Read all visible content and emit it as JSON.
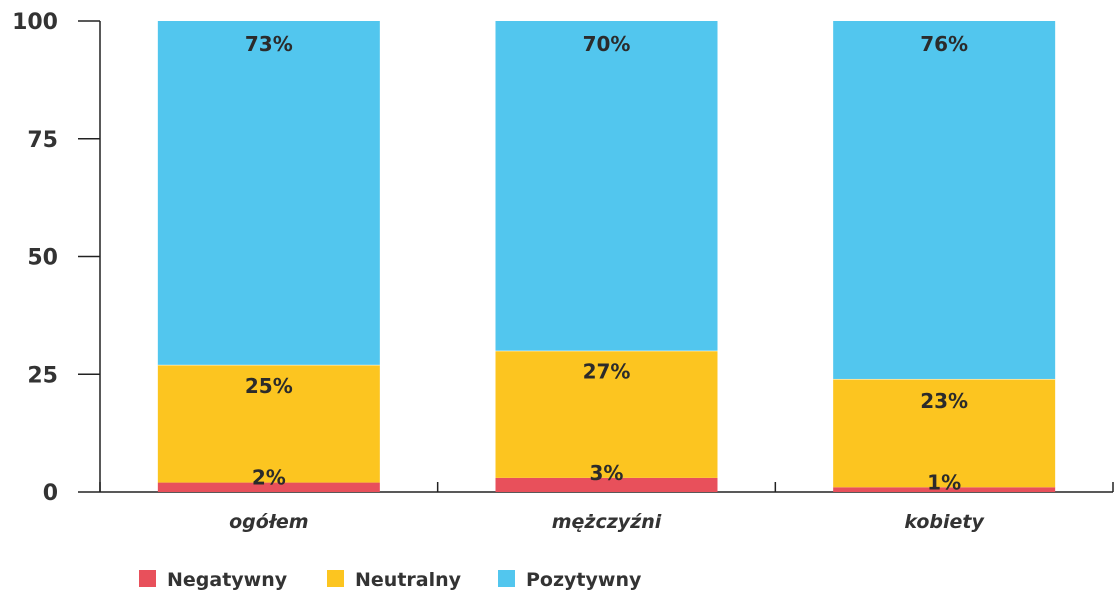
{
  "chart_data": {
    "type": "bar",
    "stacked": true,
    "categories": [
      "ogółem",
      "mężczyźni",
      "kobiety"
    ],
    "series": [
      {
        "name": "Negatywny",
        "values": [
          2,
          3,
          1
        ],
        "labels": [
          "2%",
          "3%",
          "1%"
        ],
        "color": "#e8505b"
      },
      {
        "name": "Neutralny",
        "values": [
          25,
          27,
          23
        ],
        "labels": [
          "25%",
          "27%",
          "23%"
        ],
        "color": "#fcc520"
      },
      {
        "name": "Pozytywny",
        "values": [
          73,
          70,
          76
        ],
        "labels": [
          "73%",
          "70%",
          "76%"
        ],
        "color": "#52c6ee"
      }
    ],
    "yticks": [
      "0",
      "25",
      "50",
      "75",
      "100"
    ],
    "ylim": [
      0,
      100
    ],
    "title": "",
    "xlabel": "",
    "ylabel": "",
    "grid": false,
    "legend_position": "bottom-left"
  }
}
